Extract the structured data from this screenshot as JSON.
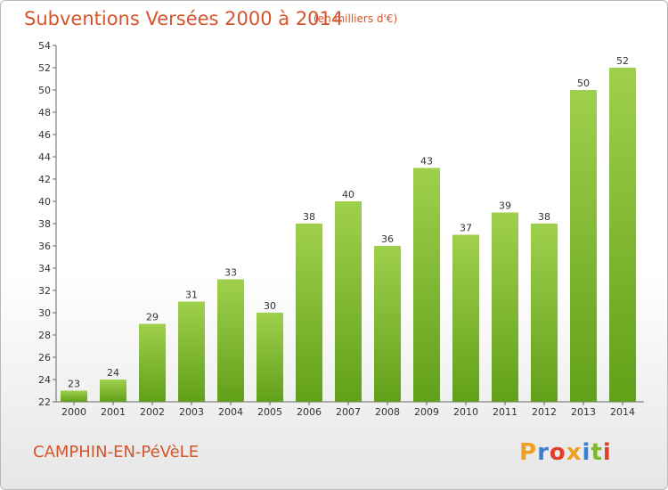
{
  "header": {
    "title": "Subventions Versées 2000 à 2014",
    "unit_note": "(en milliers d'€)"
  },
  "footer": {
    "commune": "CAMPHIN-EN-PéVèLE",
    "brand": "Proxiti"
  },
  "colors": {
    "title": "#d4552b",
    "bar_light": "#9fd04c",
    "bar_dark": "#62a01a",
    "brand_letters": [
      "#f0a020",
      "#3a7fd0",
      "#e0402a",
      "#f0a020",
      "#3a7fd0",
      "#7fb830",
      "#e0402a"
    ]
  },
  "chart_data": {
    "type": "bar",
    "categories": [
      "2000",
      "2001",
      "2002",
      "2003",
      "2004",
      "2005",
      "2006",
      "2007",
      "2008",
      "2009",
      "2010",
      "2011",
      "2012",
      "2013",
      "2014"
    ],
    "values": [
      23,
      24,
      29,
      31,
      33,
      30,
      38,
      40,
      36,
      43,
      37,
      39,
      38,
      50,
      52
    ],
    "title": "Subventions Versées 2000 à 2014",
    "subtitle": "(en milliers d'€)",
    "ylim": [
      22,
      54
    ],
    "yticks": [
      22,
      24,
      26,
      28,
      30,
      32,
      34,
      36,
      38,
      40,
      42,
      44,
      46,
      48,
      50,
      52,
      54
    ],
    "grid": false,
    "data_labels": true
  }
}
